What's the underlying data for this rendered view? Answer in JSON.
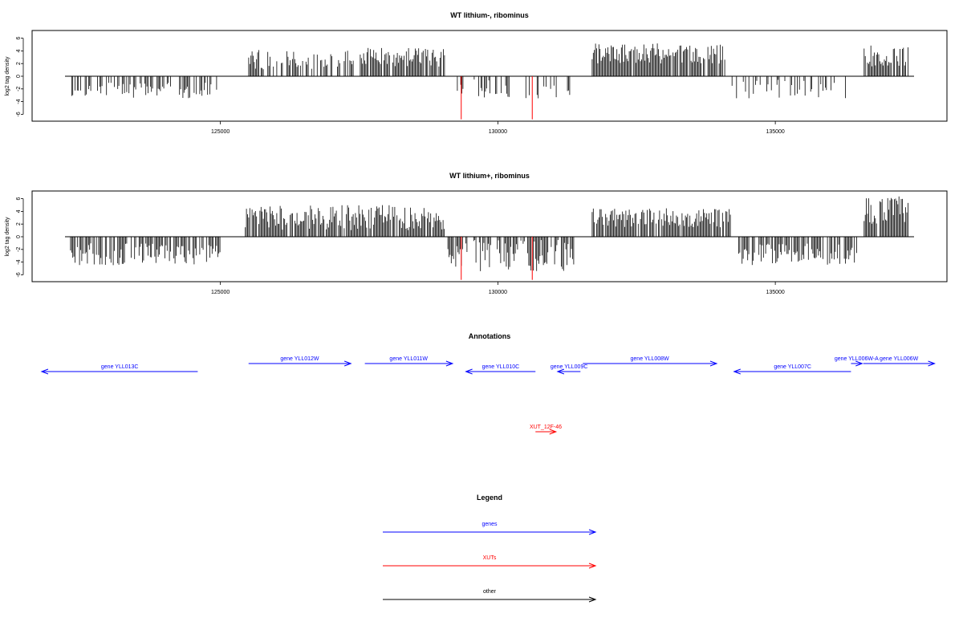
{
  "chart_data": [
    {
      "type": "bar",
      "title": "WT lithium-, ribominus",
      "ylabel": "log2 tag density",
      "ylim": [
        -7,
        7
      ],
      "yticks": [
        -6,
        -4,
        -2,
        0,
        2,
        4,
        6
      ],
      "xlim": [
        122200,
        137500
      ],
      "xticks": [
        125000,
        130000,
        135000
      ],
      "highlight_color": "#ff0000",
      "bar_color": "#000000",
      "segments": [
        {
          "start": 122300,
          "end": 125000,
          "sign": -1,
          "density": 0.45,
          "lo": 1.0,
          "hi": 3.5
        },
        {
          "start": 125450,
          "end": 127400,
          "sign": 1,
          "density": 0.6,
          "lo": 1.0,
          "hi": 4.2
        },
        {
          "start": 127500,
          "end": 129050,
          "sign": 1,
          "density": 0.85,
          "lo": 1.5,
          "hi": 4.5
        },
        {
          "start": 129250,
          "end": 131400,
          "sign": -1,
          "density": 0.3,
          "lo": 0.5,
          "hi": 3.5
        },
        {
          "start": 131700,
          "end": 134100,
          "sign": 1,
          "density": 0.95,
          "lo": 2.0,
          "hi": 5.2
        },
        {
          "start": 134200,
          "end": 136300,
          "sign": -1,
          "density": 0.3,
          "lo": 0.5,
          "hi": 3.5
        },
        {
          "start": 136600,
          "end": 137400,
          "sign": 1,
          "density": 0.85,
          "lo": 1.5,
          "hi": 5.0
        }
      ],
      "highlights": [
        {
          "x": 129340,
          "value": -6.8
        },
        {
          "x": 130620,
          "value": -6.8
        }
      ]
    },
    {
      "type": "bar",
      "title": "WT lithium+, ribominus",
      "ylabel": "log2 tag density",
      "ylim": [
        -7,
        7
      ],
      "yticks": [
        -6,
        -4,
        -2,
        0,
        2,
        4,
        6
      ],
      "xlim": [
        122200,
        137500
      ],
      "xticks": [
        125000,
        130000,
        135000
      ],
      "highlight_color": "#ff0000",
      "bar_color": "#000000",
      "segments": [
        {
          "start": 122300,
          "end": 125000,
          "sign": -1,
          "density": 0.75,
          "lo": 1.0,
          "hi": 4.5
        },
        {
          "start": 125450,
          "end": 129050,
          "sign": 1,
          "density": 0.85,
          "lo": 1.0,
          "hi": 5.0
        },
        {
          "start": 129100,
          "end": 131400,
          "sign": -1,
          "density": 0.65,
          "lo": 0.5,
          "hi": 5.5
        },
        {
          "start": 131700,
          "end": 134200,
          "sign": 1,
          "density": 0.9,
          "lo": 1.5,
          "hi": 4.5
        },
        {
          "start": 134300,
          "end": 136500,
          "sign": -1,
          "density": 0.7,
          "lo": 1.0,
          "hi": 4.5
        },
        {
          "start": 136600,
          "end": 137400,
          "sign": 1,
          "density": 0.95,
          "lo": 2.0,
          "hi": 6.5
        }
      ],
      "highlights": [
        {
          "x": 129340,
          "value": -6.8
        },
        {
          "x": 130620,
          "value": -6.8
        }
      ]
    }
  ],
  "annotations": {
    "title": "Annotations",
    "xlim": [
      122200,
      137500
    ],
    "genes_color": "#0000ff",
    "xut_color": "#ff0000",
    "features": [
      {
        "label": "gene YLL013C",
        "start": 122200,
        "end": 124870,
        "strand": "-",
        "row": 1,
        "kind": "gene"
      },
      {
        "label": "gene YLL012W",
        "start": 125740,
        "end": 127490,
        "strand": "+",
        "row": 0,
        "kind": "gene"
      },
      {
        "label": "gene YLL011W",
        "start": 127730,
        "end": 129230,
        "strand": "+",
        "row": 0,
        "kind": "gene"
      },
      {
        "label": "gene YLL010C",
        "start": 129460,
        "end": 130650,
        "strand": "-",
        "row": 1,
        "kind": "gene"
      },
      {
        "label": "gene YLL009C",
        "start": 131030,
        "end": 131420,
        "strand": "-",
        "row": 1,
        "kind": "gene"
      },
      {
        "label": "gene YLL008W",
        "start": 131460,
        "end": 133750,
        "strand": "+",
        "row": 0,
        "kind": "gene"
      },
      {
        "label": "gene YLL007C",
        "start": 134050,
        "end": 136050,
        "strand": "-",
        "row": 1,
        "kind": "gene"
      },
      {
        "label": "gene YLL006W-A",
        "start": 136050,
        "end": 136240,
        "strand": "+",
        "row": 0,
        "kind": "gene"
      },
      {
        "label": "gene YLL006W",
        "start": 136260,
        "end": 137480,
        "strand": "+",
        "row": 0,
        "kind": "gene"
      },
      {
        "label": "XUT_12F-46",
        "start": 130650,
        "end": 131000,
        "strand": "+",
        "row": 2,
        "kind": "xut"
      }
    ]
  },
  "legend": {
    "title": "Legend",
    "items": [
      {
        "label": "genes",
        "color": "#0000ff"
      },
      {
        "label": "XUTs",
        "color": "#ff0000"
      },
      {
        "label": "other",
        "color": "#000000"
      }
    ]
  }
}
